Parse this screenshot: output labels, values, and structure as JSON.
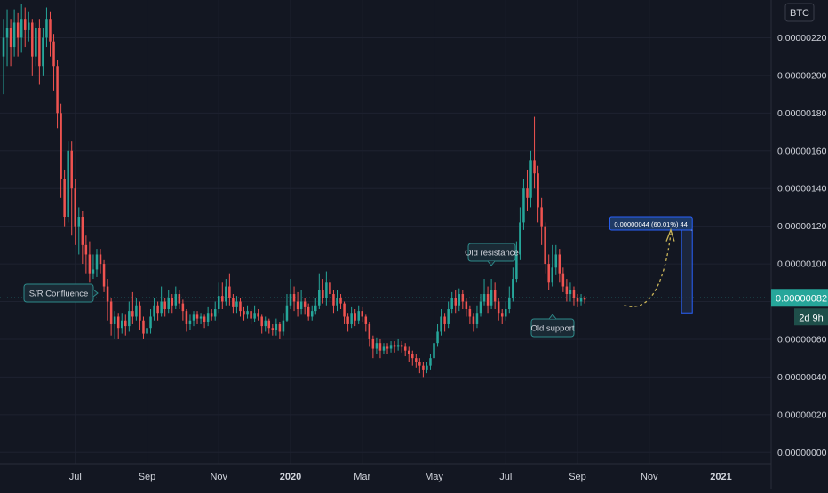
{
  "colors": {
    "background": "#131722",
    "grid": "#1e2230",
    "up": "#26a69a",
    "down": "#ef5350",
    "axis_text": "#d1d4dc",
    "zone_fill": "#1b5e20",
    "zone_stroke": "#4caf50",
    "callout_bg": "#1a2a35",
    "callout_border": "#2e8b8b",
    "price_tag": "#26a69a",
    "arrow": "#c9b458",
    "measure_fill": "#1f2a44",
    "measure_stroke": "#2962ff"
  },
  "header": {
    "currency": "BTC"
  },
  "price_axis": {
    "current_price": "0.00000082",
    "countdown": "2d 9h"
  },
  "annotations": {
    "sr_confluence": "S/R Confluence",
    "old_resistance": "Old resistance",
    "old_support": "Old support",
    "projection": "0.00000044 (60.01%) 44"
  },
  "chart_data": {
    "type": "candlestick",
    "y_tick_labels": [
      "0.00000220",
      "0.00000200",
      "0.00000180",
      "0.00000160",
      "0.00000140",
      "0.00000120",
      "0.00000100",
      "0.00000080",
      "0.00000060",
      "0.00000040",
      "0.00000020",
      "0.00000000"
    ],
    "y_ticks": [
      2.2e-06,
      2e-06,
      1.8e-06,
      1.6e-06,
      1.4e-06,
      1.2e-06,
      1e-06,
      8e-07,
      6e-07,
      4e-07,
      2e-07,
      0.0
    ],
    "ylim": [
      -6e-08,
      2.4e-06
    ],
    "x_tick_labels": [
      "Jul",
      "Sep",
      "Nov",
      "2020",
      "Mar",
      "May",
      "Jul",
      "Sep",
      "Nov",
      "2021"
    ],
    "x_tick_index": [
      20,
      40,
      60,
      80,
      100,
      120,
      140,
      160,
      180,
      200
    ],
    "x_index_range": [
      0,
      213
    ],
    "candles_start_month": "2019-06",
    "candle_period": "3D",
    "candles": [
      [
        2.1,
        2.2,
        2.3,
        1.9
      ],
      [
        2.2,
        2.25,
        2.35,
        2.05
      ],
      [
        2.25,
        2.15,
        2.3,
        2.05
      ],
      [
        2.15,
        2.28,
        2.35,
        2.1
      ],
      [
        2.28,
        2.2,
        2.33,
        2.1
      ],
      [
        2.2,
        2.3,
        2.38,
        2.12
      ],
      [
        2.3,
        2.24,
        2.36,
        2.15
      ],
      [
        2.24,
        2.28,
        2.34,
        2.18
      ],
      [
        2.28,
        2.1,
        2.3,
        2.0
      ],
      [
        2.1,
        2.25,
        2.28,
        2.05
      ],
      [
        2.25,
        2.05,
        2.3,
        1.95
      ],
      [
        2.05,
        2.2,
        2.25,
        2.0
      ],
      [
        2.2,
        2.3,
        2.36,
        2.15
      ],
      [
        2.3,
        2.18,
        2.34,
        2.1
      ],
      [
        2.18,
        2.05,
        2.22,
        1.92
      ],
      [
        2.05,
        1.8,
        2.08,
        1.72
      ],
      [
        1.8,
        1.45,
        1.85,
        1.35
      ],
      [
        1.45,
        1.25,
        1.5,
        1.2
      ],
      [
        1.25,
        1.6,
        1.65,
        1.22
      ],
      [
        1.6,
        1.4,
        1.65,
        1.15
      ],
      [
        1.4,
        1.2,
        1.45,
        1.1
      ],
      [
        1.2,
        1.25,
        1.3,
        1.05
      ],
      [
        1.25,
        1.1,
        1.28,
        1.0
      ],
      [
        1.1,
        1.05,
        1.15,
        0.95
      ],
      [
        1.05,
        0.95,
        1.12,
        0.9
      ],
      [
        0.95,
        0.97,
        1.05,
        0.92
      ],
      [
        0.97,
        1.05,
        1.08,
        0.93
      ],
      [
        1.05,
        1.0,
        1.08,
        0.95
      ],
      [
        1.0,
        0.88,
        1.02,
        0.85
      ],
      [
        0.88,
        0.8,
        0.92,
        0.7
      ],
      [
        0.8,
        0.68,
        0.82,
        0.62
      ],
      [
        0.68,
        0.72,
        0.75,
        0.6
      ],
      [
        0.72,
        0.66,
        0.74,
        0.6
      ],
      [
        0.66,
        0.7,
        0.74,
        0.63
      ],
      [
        0.7,
        0.67,
        0.73,
        0.62
      ],
      [
        0.67,
        0.75,
        0.8,
        0.64
      ],
      [
        0.75,
        0.72,
        0.85,
        0.68
      ],
      [
        0.72,
        0.78,
        0.82,
        0.7
      ],
      [
        0.78,
        0.7,
        0.8,
        0.65
      ],
      [
        0.7,
        0.63,
        0.72,
        0.6
      ],
      [
        0.63,
        0.66,
        0.72,
        0.6
      ],
      [
        0.66,
        0.72,
        0.76,
        0.63
      ],
      [
        0.72,
        0.78,
        0.82,
        0.7
      ],
      [
        0.78,
        0.74,
        0.8,
        0.7
      ],
      [
        0.74,
        0.8,
        0.88,
        0.72
      ],
      [
        0.8,
        0.76,
        0.82,
        0.72
      ],
      [
        0.76,
        0.82,
        0.86,
        0.74
      ],
      [
        0.82,
        0.78,
        0.84,
        0.74
      ],
      [
        0.78,
        0.84,
        0.88,
        0.76
      ],
      [
        0.84,
        0.79,
        0.86,
        0.76
      ],
      [
        0.79,
        0.75,
        0.81,
        0.7
      ],
      [
        0.75,
        0.68,
        0.76,
        0.64
      ],
      [
        0.68,
        0.7,
        0.73,
        0.65
      ],
      [
        0.7,
        0.73,
        0.75,
        0.67
      ],
      [
        0.73,
        0.71,
        0.75,
        0.68
      ],
      [
        0.71,
        0.72,
        0.74,
        0.68
      ],
      [
        0.72,
        0.69,
        0.73,
        0.66
      ],
      [
        0.69,
        0.74,
        0.77,
        0.67
      ],
      [
        0.74,
        0.72,
        0.76,
        0.7
      ],
      [
        0.72,
        0.76,
        0.8,
        0.7
      ],
      [
        0.76,
        0.83,
        0.9,
        0.74
      ],
      [
        0.83,
        0.8,
        0.9,
        0.76
      ],
      [
        0.8,
        0.88,
        0.92,
        0.78
      ],
      [
        0.88,
        0.82,
        0.95,
        0.78
      ],
      [
        0.82,
        0.77,
        0.84,
        0.74
      ],
      [
        0.77,
        0.8,
        0.83,
        0.74
      ],
      [
        0.8,
        0.75,
        0.82,
        0.72
      ],
      [
        0.75,
        0.73,
        0.77,
        0.7
      ],
      [
        0.73,
        0.75,
        0.78,
        0.71
      ],
      [
        0.75,
        0.71,
        0.76,
        0.68
      ],
      [
        0.71,
        0.74,
        0.78,
        0.69
      ],
      [
        0.74,
        0.72,
        0.76,
        0.7
      ],
      [
        0.72,
        0.67,
        0.73,
        0.63
      ],
      [
        0.67,
        0.7,
        0.72,
        0.64
      ],
      [
        0.7,
        0.66,
        0.71,
        0.63
      ],
      [
        0.66,
        0.65,
        0.68,
        0.62
      ],
      [
        0.65,
        0.68,
        0.71,
        0.62
      ],
      [
        0.68,
        0.64,
        0.69,
        0.6
      ],
      [
        0.64,
        0.7,
        0.74,
        0.62
      ],
      [
        0.7,
        0.78,
        0.84,
        0.69
      ],
      [
        0.78,
        0.84,
        0.92,
        0.76
      ],
      [
        0.84,
        0.8,
        0.88,
        0.75
      ],
      [
        0.8,
        0.76,
        0.85,
        0.72
      ],
      [
        0.76,
        0.8,
        0.86,
        0.73
      ],
      [
        0.8,
        0.77,
        0.82,
        0.73
      ],
      [
        0.77,
        0.72,
        0.79,
        0.7
      ],
      [
        0.72,
        0.75,
        0.78,
        0.7
      ],
      [
        0.75,
        0.78,
        0.82,
        0.73
      ],
      [
        0.78,
        0.86,
        0.95,
        0.76
      ],
      [
        0.86,
        0.82,
        0.92,
        0.79
      ],
      [
        0.82,
        0.9,
        0.96,
        0.78
      ],
      [
        0.9,
        0.84,
        0.92,
        0.8
      ],
      [
        0.84,
        0.78,
        0.86,
        0.74
      ],
      [
        0.78,
        0.82,
        0.86,
        0.75
      ],
      [
        0.82,
        0.79,
        0.84,
        0.76
      ],
      [
        0.79,
        0.72,
        0.8,
        0.68
      ],
      [
        0.72,
        0.68,
        0.74,
        0.64
      ],
      [
        0.68,
        0.74,
        0.77,
        0.66
      ],
      [
        0.74,
        0.7,
        0.76,
        0.67
      ],
      [
        0.7,
        0.75,
        0.78,
        0.68
      ],
      [
        0.75,
        0.72,
        0.77,
        0.69
      ],
      [
        0.72,
        0.68,
        0.73,
        0.64
      ],
      [
        0.68,
        0.6,
        0.69,
        0.56
      ],
      [
        0.6,
        0.55,
        0.62,
        0.5
      ],
      [
        0.55,
        0.58,
        0.61,
        0.52
      ],
      [
        0.58,
        0.54,
        0.6,
        0.5
      ],
      [
        0.54,
        0.56,
        0.58,
        0.52
      ],
      [
        0.56,
        0.55,
        0.58,
        0.52
      ],
      [
        0.55,
        0.57,
        0.59,
        0.53
      ],
      [
        0.57,
        0.56,
        0.59,
        0.53
      ],
      [
        0.56,
        0.57,
        0.6,
        0.54
      ],
      [
        0.57,
        0.56,
        0.59,
        0.53
      ],
      [
        0.56,
        0.54,
        0.58,
        0.51
      ],
      [
        0.54,
        0.52,
        0.56,
        0.48
      ],
      [
        0.52,
        0.5,
        0.54,
        0.46
      ],
      [
        0.5,
        0.48,
        0.52,
        0.45
      ],
      [
        0.48,
        0.46,
        0.5,
        0.42
      ],
      [
        0.46,
        0.44,
        0.48,
        0.4
      ],
      [
        0.44,
        0.46,
        0.48,
        0.42
      ],
      [
        0.46,
        0.5,
        0.52,
        0.44
      ],
      [
        0.5,
        0.58,
        0.6,
        0.48
      ],
      [
        0.58,
        0.64,
        0.68,
        0.56
      ],
      [
        0.64,
        0.72,
        0.76,
        0.62
      ],
      [
        0.72,
        0.68,
        0.74,
        0.64
      ],
      [
        0.68,
        0.76,
        0.8,
        0.66
      ],
      [
        0.76,
        0.82,
        0.85,
        0.74
      ],
      [
        0.82,
        0.78,
        0.86,
        0.74
      ],
      [
        0.78,
        0.84,
        0.87,
        0.75
      ],
      [
        0.84,
        0.8,
        0.86,
        0.76
      ],
      [
        0.8,
        0.76,
        0.82,
        0.72
      ],
      [
        0.76,
        0.72,
        0.78,
        0.68
      ],
      [
        0.72,
        0.68,
        0.74,
        0.64
      ],
      [
        0.68,
        0.74,
        0.78,
        0.66
      ],
      [
        0.74,
        0.8,
        0.84,
        0.72
      ],
      [
        0.8,
        0.84,
        0.92,
        0.78
      ],
      [
        0.84,
        0.78,
        0.88,
        0.74
      ],
      [
        0.78,
        0.86,
        0.92,
        0.76
      ],
      [
        0.86,
        0.8,
        0.9,
        0.76
      ],
      [
        0.8,
        0.74,
        0.82,
        0.7
      ],
      [
        0.74,
        0.72,
        0.76,
        0.68
      ],
      [
        0.72,
        0.76,
        0.8,
        0.7
      ],
      [
        0.76,
        0.82,
        0.88,
        0.74
      ],
      [
        0.82,
        0.92,
        0.98,
        0.8
      ],
      [
        0.92,
        1.05,
        1.12,
        0.9
      ],
      [
        1.05,
        1.22,
        1.3,
        1.02
      ],
      [
        1.22,
        1.4,
        1.45,
        1.18
      ],
      [
        1.4,
        1.35,
        1.5,
        1.28
      ],
      [
        1.35,
        1.55,
        1.6,
        1.3
      ],
      [
        1.55,
        1.48,
        1.78,
        1.4
      ],
      [
        1.48,
        1.3,
        1.52,
        1.22
      ],
      [
        1.3,
        1.2,
        1.35,
        1.1
      ],
      [
        1.2,
        1.0,
        1.22,
        0.95
      ],
      [
        1.0,
        0.9,
        1.05,
        0.86
      ],
      [
        0.9,
        0.98,
        1.1,
        0.88
      ],
      [
        0.98,
        1.05,
        1.1,
        0.94
      ],
      [
        1.05,
        0.95,
        1.08,
        0.9
      ],
      [
        0.95,
        0.88,
        0.98,
        0.85
      ],
      [
        0.88,
        0.84,
        0.92,
        0.8
      ],
      [
        0.84,
        0.86,
        0.9,
        0.8
      ],
      [
        0.86,
        0.82,
        0.88,
        0.78
      ],
      [
        0.82,
        0.8,
        0.84,
        0.77
      ],
      [
        0.8,
        0.82,
        0.84,
        0.78
      ],
      [
        0.82,
        0.81,
        0.83,
        0.79
      ]
    ]
  }
}
